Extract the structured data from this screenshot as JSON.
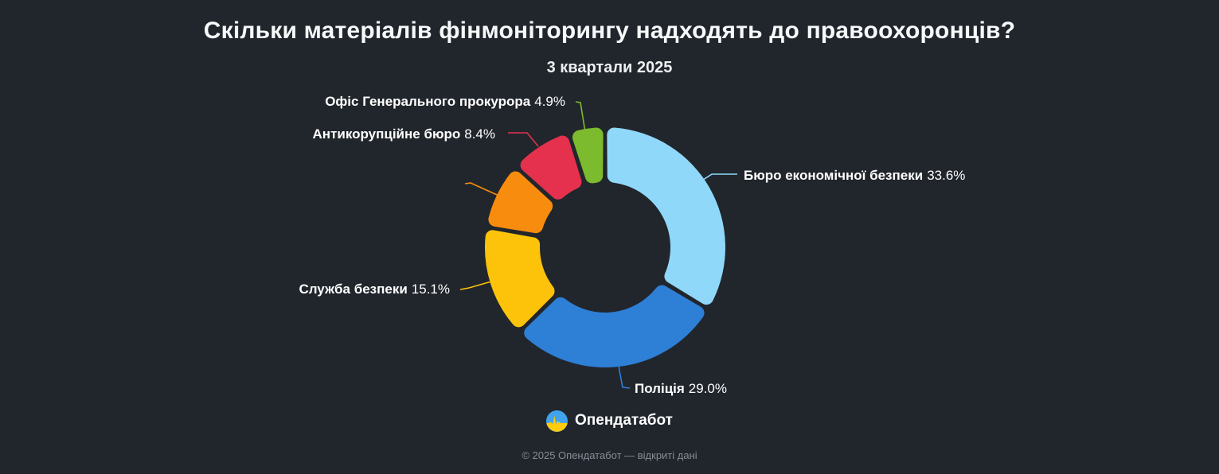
{
  "page": {
    "background": "#21262c"
  },
  "header": {
    "title": "Скільки матеріалів фінмоніторингу надходять до правоохоронців?",
    "subtitle": "3 квартали 2025"
  },
  "chart_data": {
    "type": "pie",
    "donut": true,
    "title": "Скільки матеріалів фінмоніторингу надходять до правоохоронців?",
    "subtitle": "3 квартали 2025",
    "legend_position": "none",
    "start_angle_deg": 0,
    "direction": "clockwise",
    "segments": [
      {
        "label": "Бюро економічної безпеки",
        "percent": 33.6,
        "percent_text": "33.6%",
        "color": "#90d8fa",
        "label_visible": true
      },
      {
        "label": "Поліція",
        "percent": 29.0,
        "percent_text": "29.0%",
        "color": "#2e7fd6",
        "label_visible": true
      },
      {
        "label": "Служба безпеки",
        "percent": 15.1,
        "percent_text": "15.1%",
        "color": "#fcc30a",
        "label_visible": true
      },
      {
        "label": "",
        "percent": 9.0,
        "percent_text": "",
        "color": "#f88c0e",
        "label_visible": false
      },
      {
        "label": "Антикорупційне бюро",
        "percent": 8.4,
        "percent_text": "8.4%",
        "color": "#e5314e",
        "label_visible": true
      },
      {
        "label": "Офіс Генерального прокурора",
        "percent": 4.9,
        "percent_text": "4.9%",
        "color": "#7cba2e",
        "label_visible": true
      }
    ]
  },
  "brand": {
    "name": "Опендатабот"
  },
  "footer": {
    "copyright": "© 2025 Опендатабот — відкриті дані"
  }
}
